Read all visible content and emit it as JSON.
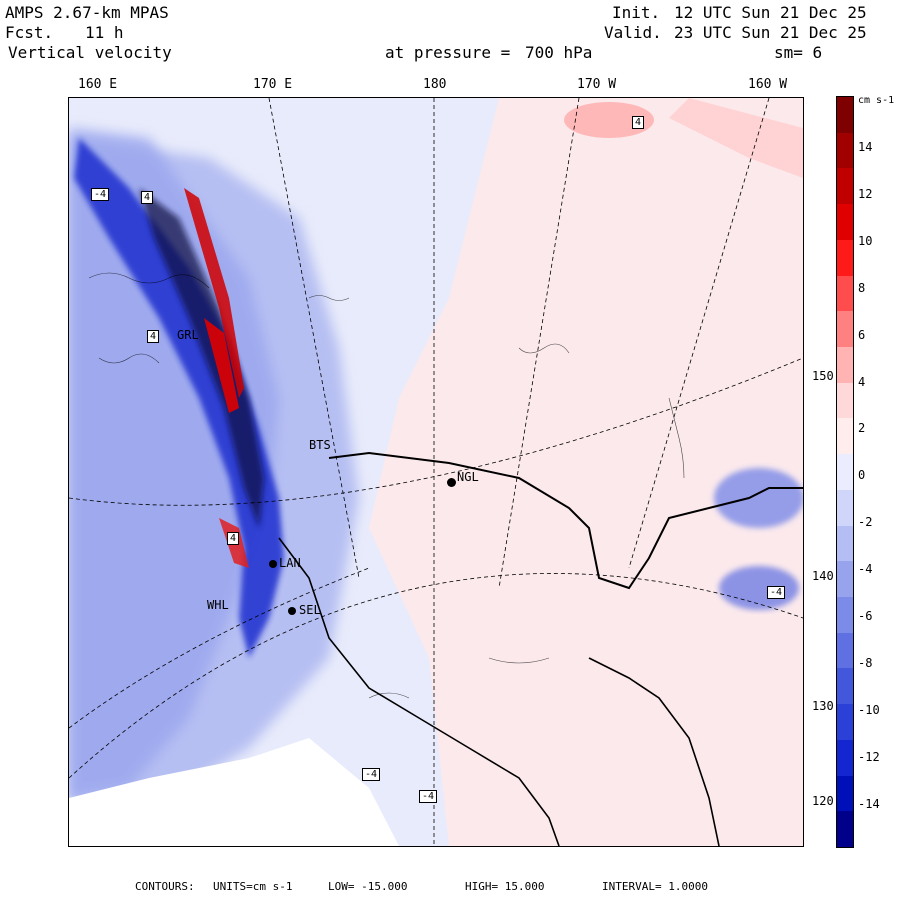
{
  "header": {
    "model": "AMPS 2.67-km MPAS",
    "fcst_label": "Fcst.",
    "fcst_value": "11 h",
    "field": "Vertical velocity",
    "init_label": "Init.",
    "init_value": "12 UTC Sun 21 Dec 25",
    "valid_label": "Valid.",
    "valid_value": "23 UTC Sun 21 Dec 25",
    "pressure_label": "at pressure =",
    "pressure_value": "700 hPa",
    "smoothing": "sm= 6"
  },
  "longitudes": [
    "160 E",
    "170 E",
    "180",
    "170 W",
    "160 W"
  ],
  "latitudes": [
    "150 W",
    "140 W",
    "130 W",
    "120 W"
  ],
  "stations": [
    {
      "code": "NGL",
      "lonlat": [
        180.5,
        -83.0
      ]
    },
    {
      "code": "LAN",
      "lonlat": [
        168.5,
        -84.0
      ]
    },
    {
      "code": "SEL",
      "lonlat": [
        170.0,
        -84.6
      ]
    },
    {
      "code": "BTS",
      "lonlat": [
        169.0,
        -82.6
      ]
    },
    {
      "code": "WHL",
      "lonlat": [
        166.0,
        -84.6
      ]
    },
    {
      "code": "GRL",
      "lonlat": [
        165.0,
        -81.2
      ]
    }
  ],
  "extrema_labels": [
    "-4",
    "4",
    "4",
    "-4",
    "4",
    "-4",
    "-4",
    "4"
  ],
  "colorbar": {
    "unit": "cm s-1",
    "ticks": [
      "14",
      "12",
      "10",
      "8",
      "6",
      "4",
      "2",
      "0",
      "-2",
      "-4",
      "-6",
      "-8",
      "-10",
      "-12",
      "-14"
    ],
    "colors": [
      "#7f0000",
      "#a00000",
      "#c00000",
      "#e00000",
      "#ff1a1a",
      "#ff4d4d",
      "#ff8080",
      "#ffb3b3",
      "#ffd9d9",
      "#ffecec",
      "#ececff",
      "#d0d6fa",
      "#b4bdf4",
      "#98a3ee",
      "#7c8ae8",
      "#5f70e2",
      "#4257dc",
      "#2a40d6",
      "#1326d0",
      "#0010b8",
      "#00008b"
    ]
  },
  "footer": {
    "contours_label": "CONTOURS:",
    "units": "UNITS=cm s-1",
    "low": "LOW= -15.000",
    "high": "HIGH= 15.000",
    "interval": "INTERVAL= 1.0000"
  }
}
